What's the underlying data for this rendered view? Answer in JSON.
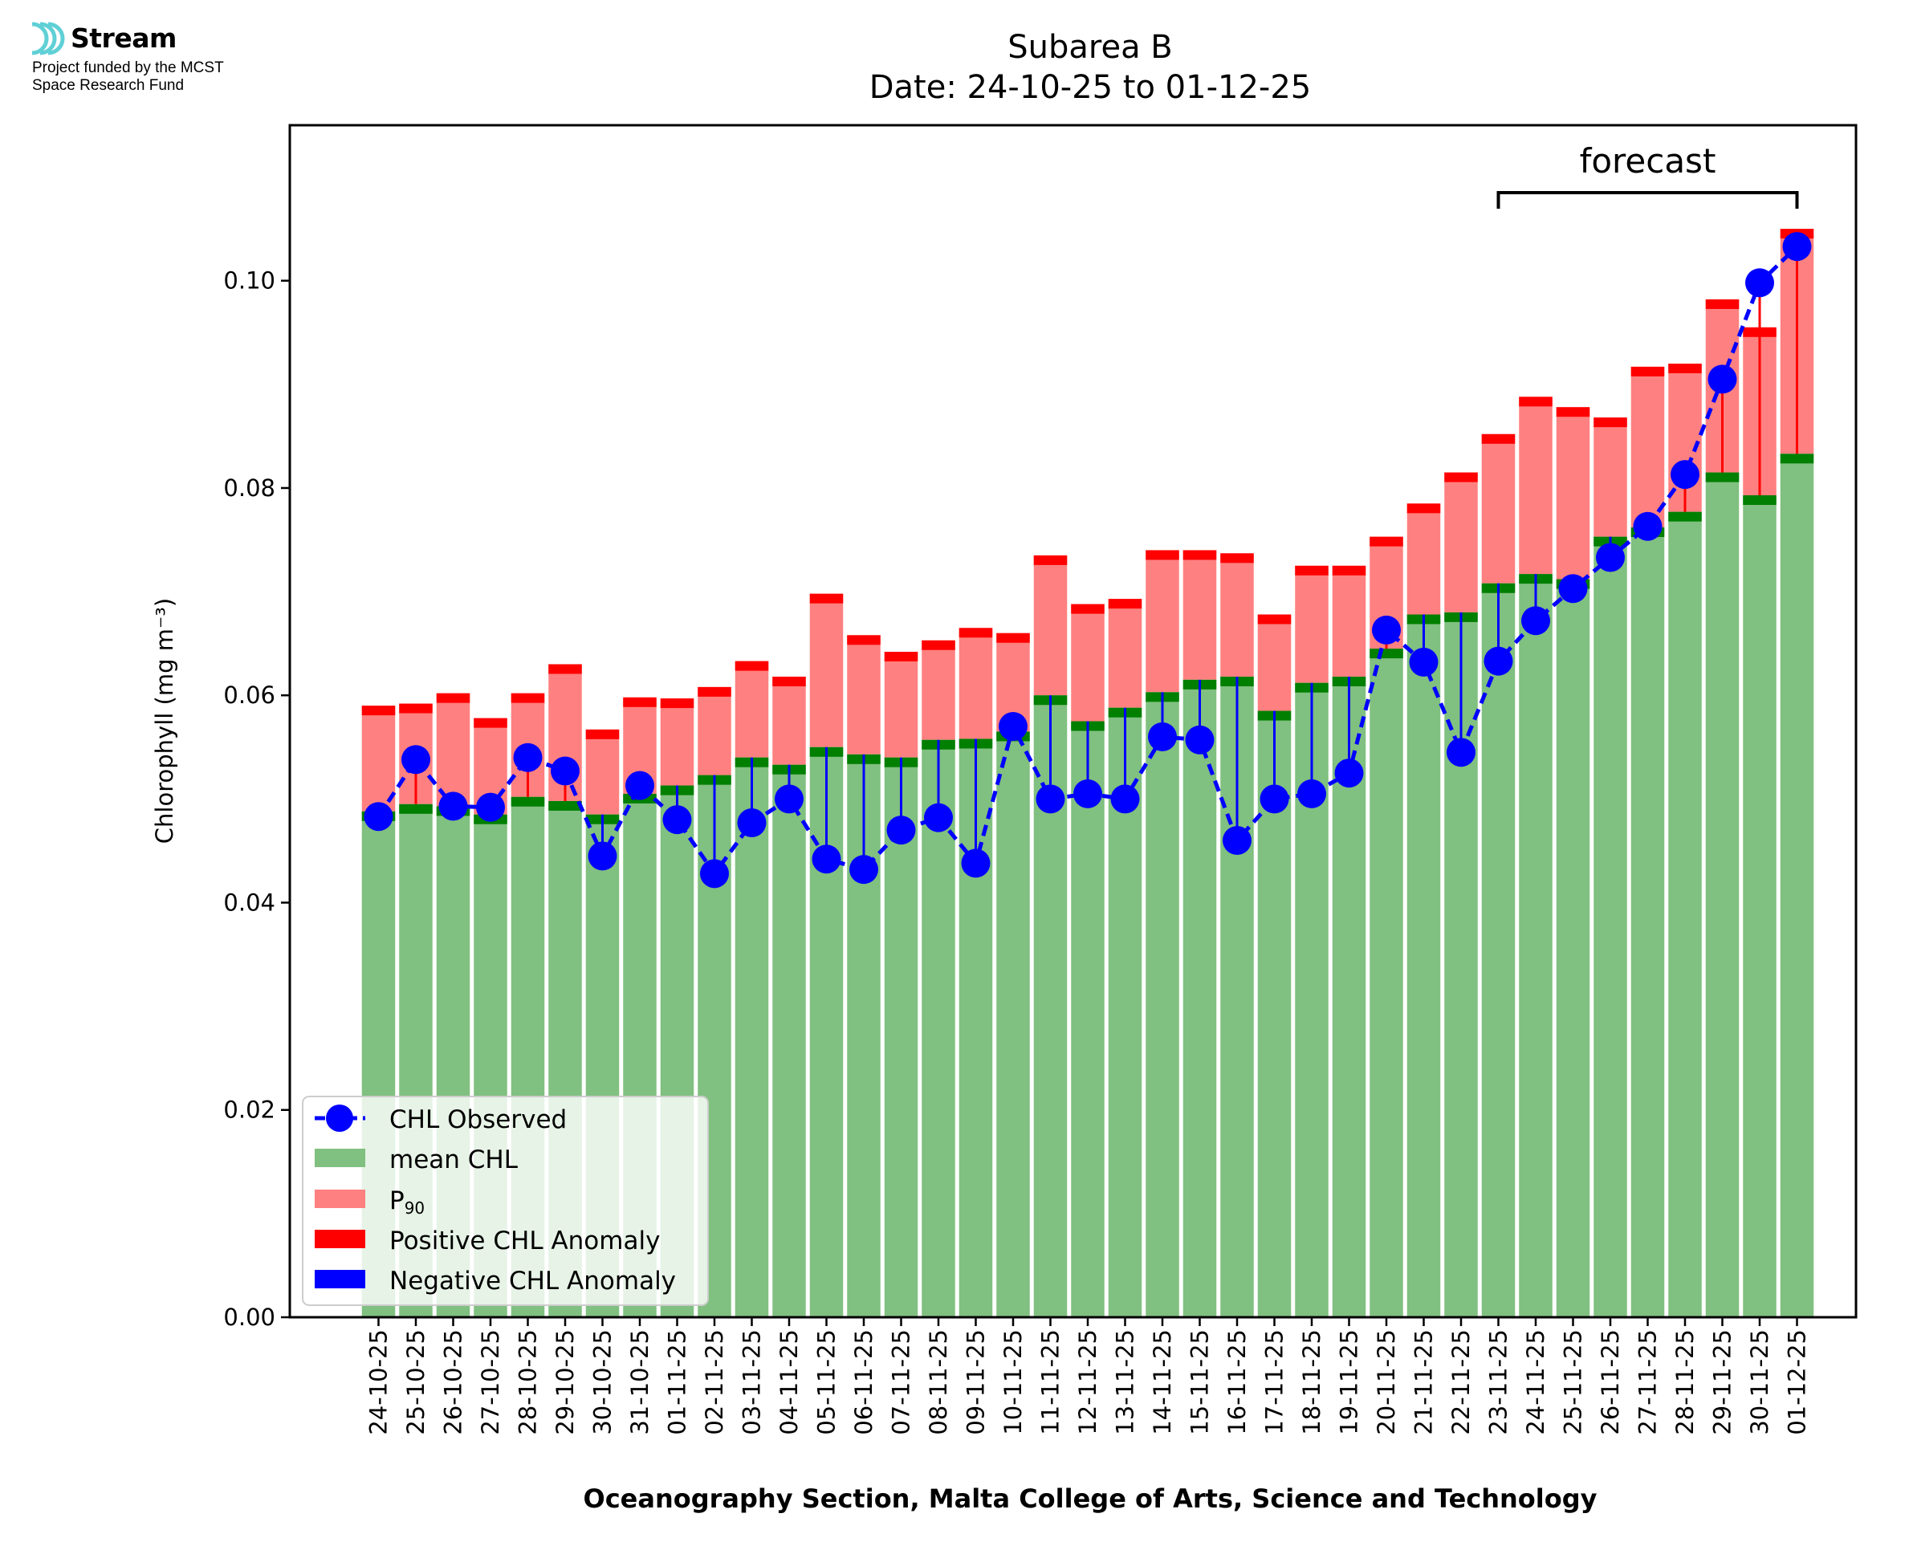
{
  "logo": {
    "name": "Stream",
    "line1": "Project funded by the MCST",
    "line2": "Space Research Fund",
    "color": "#5fd0d6"
  },
  "chart_data": {
    "type": "bar",
    "title": "Subarea B",
    "subtitle": "Date: 24-10-25 to 01-12-25",
    "xlabel": "Oceanography Section, Malta College of Arts, Science and Technology",
    "ylabel": "Chlorophyll (mg m⁻³)",
    "ylim": [
      0,
      0.115
    ],
    "yticks": [
      0.0,
      0.02,
      0.04,
      0.06,
      0.08,
      0.1
    ],
    "ytick_labels": [
      "0.00",
      "0.02",
      "0.04",
      "0.06",
      "0.08",
      "0.10"
    ],
    "categories": [
      "24-10-25",
      "25-10-25",
      "26-10-25",
      "27-10-25",
      "28-10-25",
      "29-10-25",
      "30-10-25",
      "31-10-25",
      "01-11-25",
      "02-11-25",
      "03-11-25",
      "04-11-25",
      "05-11-25",
      "06-11-25",
      "07-11-25",
      "08-11-25",
      "09-11-25",
      "10-11-25",
      "11-11-25",
      "12-11-25",
      "13-11-25",
      "14-11-25",
      "15-11-25",
      "16-11-25",
      "17-11-25",
      "18-11-25",
      "19-11-25",
      "20-11-25",
      "21-11-25",
      "22-11-25",
      "23-11-25",
      "24-11-25",
      "25-11-25",
      "26-11-25",
      "27-11-25",
      "28-11-25",
      "29-11-25",
      "30-11-25",
      "01-12-25"
    ],
    "series": [
      {
        "name": "mean CHL",
        "color": "#80c080",
        "values": [
          0.0488,
          0.0495,
          0.0493,
          0.0485,
          0.0502,
          0.0498,
          0.0485,
          0.0505,
          0.0513,
          0.0523,
          0.054,
          0.0533,
          0.055,
          0.0543,
          0.054,
          0.0557,
          0.0558,
          0.0565,
          0.06,
          0.0575,
          0.0588,
          0.0603,
          0.0615,
          0.0618,
          0.0585,
          0.0612,
          0.0618,
          0.0645,
          0.0678,
          0.068,
          0.0708,
          0.0717,
          0.0712,
          0.0753,
          0.0762,
          0.0777,
          0.0815,
          0.0793,
          0.0833
        ]
      },
      {
        "name": "P₉₀",
        "color": "#ff8080",
        "values": [
          0.059,
          0.0592,
          0.0602,
          0.0578,
          0.0602,
          0.063,
          0.0567,
          0.0598,
          0.0597,
          0.0608,
          0.0633,
          0.0618,
          0.0698,
          0.0658,
          0.0642,
          0.0653,
          0.0665,
          0.066,
          0.0735,
          0.0688,
          0.0693,
          0.074,
          0.074,
          0.0737,
          0.0678,
          0.0725,
          0.0725,
          0.0753,
          0.0785,
          0.0815,
          0.0852,
          0.0888,
          0.0878,
          0.0868,
          0.0917,
          0.092,
          0.0982,
          0.0955,
          0.105
        ]
      },
      {
        "name": "CHL Observed",
        "color": "#0000ff",
        "values": [
          0.0483,
          0.0538,
          0.0493,
          0.0492,
          0.054,
          0.0527,
          0.0445,
          0.0513,
          0.048,
          0.0428,
          0.0477,
          0.05,
          0.0442,
          0.0432,
          0.047,
          0.0482,
          0.0438,
          0.057,
          0.05,
          0.0505,
          0.05,
          0.056,
          0.0557,
          0.046,
          0.05,
          0.0505,
          0.0525,
          0.0663,
          0.0632,
          0.0545,
          0.0633,
          0.0672,
          0.0703,
          0.0733,
          0.0763,
          0.0813,
          0.0905,
          0.0998,
          0.1033
        ]
      }
    ],
    "legend": {
      "position": "lower-left",
      "entries": [
        {
          "label": "CHL Observed",
          "kind": "line-marker",
          "color": "#0000ff"
        },
        {
          "label": "mean CHL",
          "kind": "patch",
          "color": "#80c080"
        },
        {
          "label": "P",
          "sub": "90",
          "kind": "patch",
          "color": "#ff8080"
        },
        {
          "label": "Positive CHL Anomaly",
          "kind": "patch",
          "color": "#ff0000"
        },
        {
          "label": "Negative CHL Anomaly",
          "kind": "patch",
          "color": "#0000ff"
        }
      ]
    },
    "annotation": {
      "text": "forecast",
      "from": "23-11-25",
      "to": "01-12-25"
    },
    "colors": {
      "positive_anomaly": "#ff0000",
      "negative_anomaly": "#0000ff",
      "mean_edge": "#007f00"
    }
  }
}
